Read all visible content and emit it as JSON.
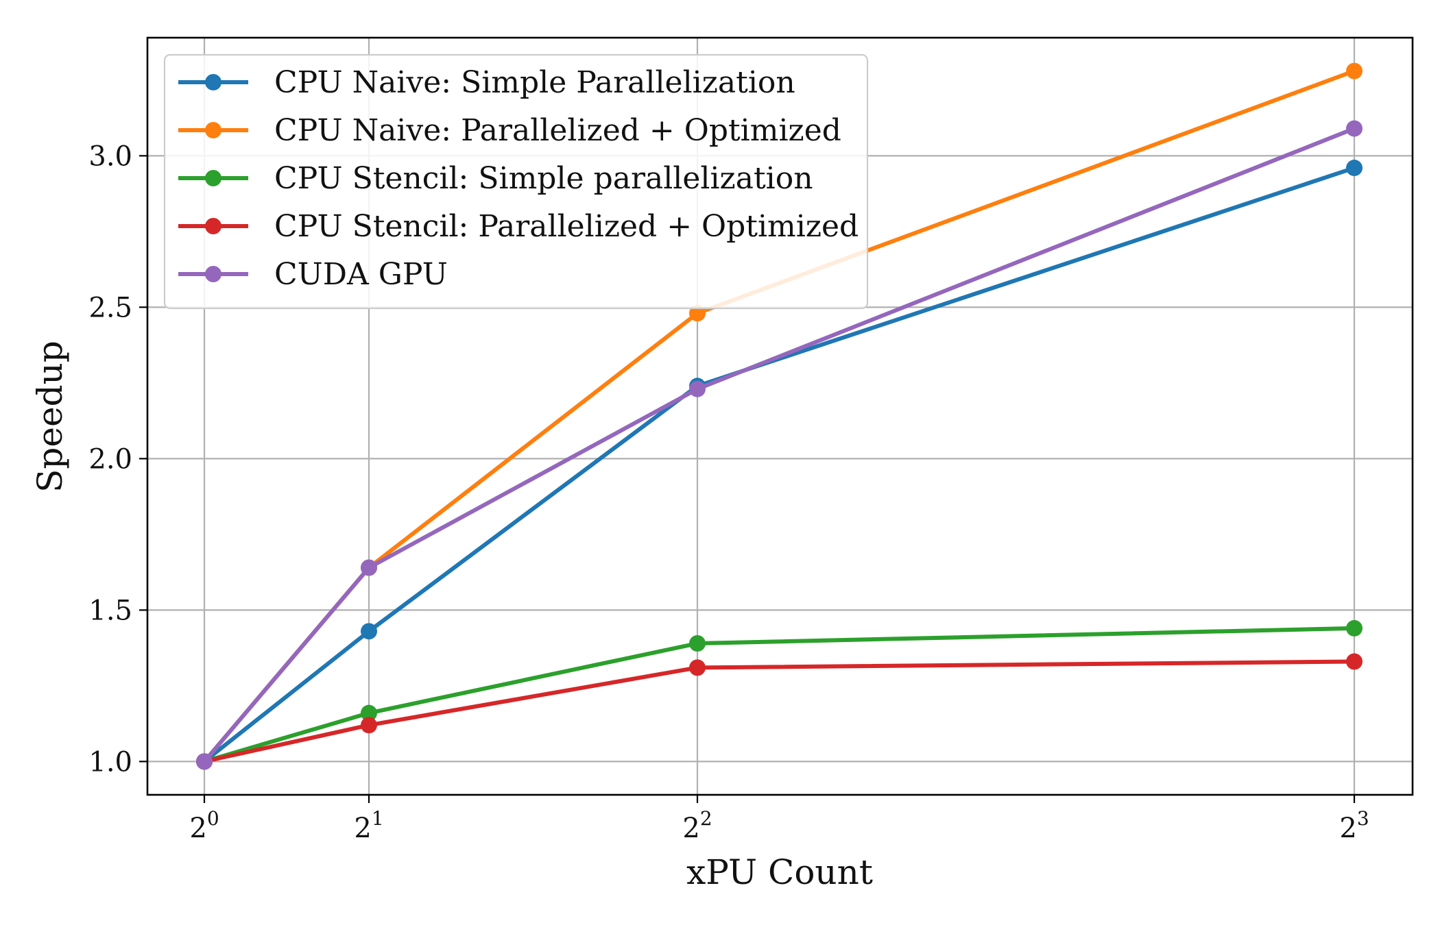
{
  "chart_data": {
    "type": "line",
    "title": "",
    "xlabel": "xPU Count",
    "ylabel": "Speedup",
    "x_scale": "log2",
    "x": [
      1,
      2,
      4,
      8
    ],
    "x_tick_labels": [
      {
        "base": "2",
        "exp": "0"
      },
      {
        "base": "2",
        "exp": "1"
      },
      {
        "base": "2",
        "exp": "2"
      },
      {
        "base": "2",
        "exp": "3"
      }
    ],
    "y_ticks": [
      "1.0",
      "1.5",
      "2.0",
      "2.5",
      "3.0"
    ],
    "ylim": [
      0.89,
      3.39
    ],
    "grid": true,
    "legend_position": "upper-left",
    "series": [
      {
        "name": "CPU Naive: Simple Parallelization",
        "color": "#1f77b4",
        "values": [
          1.0,
          1.43,
          2.24,
          2.96
        ]
      },
      {
        "name": "CPU Naive: Parallelized + Optimized",
        "color": "#ff7f0e",
        "values": [
          1.0,
          1.64,
          2.48,
          3.28
        ]
      },
      {
        "name": "CPU Stencil: Simple parallelization",
        "color": "#2ca02c",
        "values": [
          1.0,
          1.16,
          1.39,
          1.44
        ]
      },
      {
        "name": "CPU Stencil: Parallelized + Optimized",
        "color": "#d62728",
        "values": [
          1.0,
          1.12,
          1.31,
          1.33
        ]
      },
      {
        "name": "CUDA GPU",
        "color": "#9467bd",
        "values": [
          1.0,
          1.64,
          2.23,
          3.09
        ]
      }
    ]
  }
}
